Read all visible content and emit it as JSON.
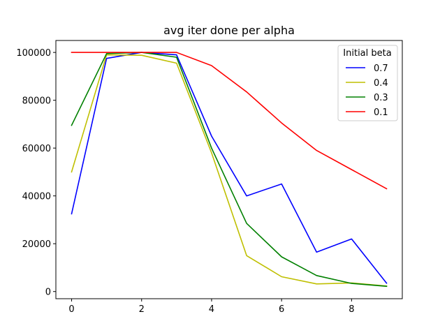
{
  "chart_data": {
    "type": "line",
    "title": "avg iter done per alpha",
    "xlabel": "",
    "ylabel": "",
    "xlim": [
      -0.45,
      9.45
    ],
    "ylim": [
      -3000,
      105000
    ],
    "x_ticks": [
      0,
      2,
      4,
      6,
      8
    ],
    "y_ticks": [
      0,
      20000,
      40000,
      60000,
      80000,
      100000
    ],
    "x_tick_labels": [
      "0",
      "2",
      "4",
      "6",
      "8"
    ],
    "y_tick_labels": [
      "0",
      "20000",
      "40000",
      "60000",
      "80000",
      "100000"
    ],
    "grid": false,
    "legend": {
      "title": "Initial beta",
      "placement": "top-right"
    },
    "x": [
      0,
      1,
      2,
      3,
      4,
      5,
      6,
      7,
      8,
      9
    ],
    "series": [
      {
        "name": "0.7",
        "color": "#0000ff",
        "values": [
          32500,
          97500,
          100000,
          99000,
          65000,
          40000,
          45000,
          16500,
          22000,
          3500
        ]
      },
      {
        "name": "0.4",
        "color": "#bfbf00",
        "values": [
          50000,
          99000,
          98800,
          95500,
          58000,
          15000,
          6200,
          3200,
          3600,
          2300
        ]
      },
      {
        "name": "0.3",
        "color": "#008000",
        "values": [
          69500,
          99500,
          100000,
          98000,
          60000,
          28500,
          14500,
          6700,
          3400,
          2200
        ]
      },
      {
        "name": "0.1",
        "color": "#ff0000",
        "values": [
          100000,
          100000,
          100000,
          100000,
          94500,
          83500,
          70500,
          59000,
          51000,
          43000
        ]
      }
    ]
  }
}
